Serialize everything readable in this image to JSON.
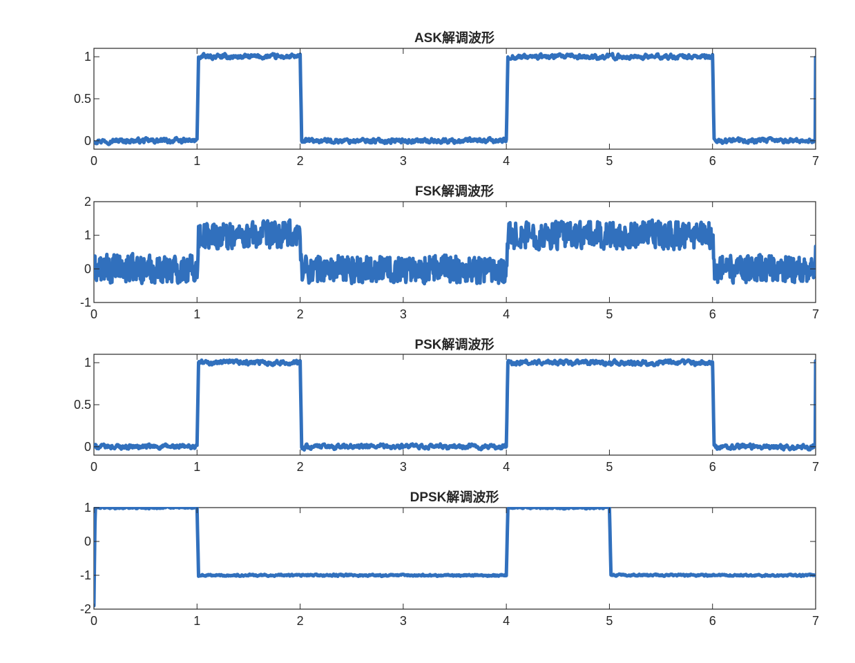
{
  "figure": {
    "background": "#ffffff"
  },
  "chart_data": [
    {
      "type": "line",
      "title": "ASK解调波形",
      "xlabel": "",
      "ylabel": "",
      "xlim": [
        0,
        7
      ],
      "ylim": [
        -0.1,
        1.1
      ],
      "xticks": [
        0,
        1,
        2,
        3,
        4,
        5,
        6,
        7
      ],
      "yticks": [
        0,
        0.5,
        1
      ],
      "ytick_labels": [
        "0",
        "0.5",
        "1"
      ],
      "grid": false,
      "line_color": "#3170bd",
      "symbols": [
        0,
        1,
        0,
        0,
        1,
        1,
        0
      ],
      "levels": [
        0,
        1
      ],
      "noise_amplitude": 0.03,
      "series": [
        {
          "x": [
            0,
            0.98,
            1.0,
            1.98,
            2.0,
            3.98,
            4.0,
            5.98,
            6.0,
            7.0
          ],
          "values": [
            0,
            0,
            1,
            1,
            0,
            0,
            1,
            1,
            0,
            0
          ]
        }
      ]
    },
    {
      "type": "line",
      "title": "FSK解调波形",
      "xlabel": "",
      "ylabel": "",
      "xlim": [
        0,
        7
      ],
      "ylim": [
        -1,
        2
      ],
      "xticks": [
        0,
        1,
        2,
        3,
        4,
        5,
        6,
        7
      ],
      "yticks": [
        -1,
        0,
        1,
        2
      ],
      "ytick_labels": [
        "-1",
        "0",
        "1",
        "2"
      ],
      "grid": false,
      "line_color": "#3170bd",
      "symbols": [
        0,
        1,
        0,
        0,
        1,
        1,
        0
      ],
      "levels": [
        0,
        1
      ],
      "noise_amplitude": 0.38,
      "series": [
        {
          "x": [
            0,
            0.98,
            1.0,
            1.98,
            2.0,
            3.98,
            4.0,
            5.98,
            6.0,
            7.0
          ],
          "values": [
            0,
            0,
            1,
            1,
            0,
            0,
            1,
            1,
            0,
            0
          ]
        }
      ]
    },
    {
      "type": "line",
      "title": "PSK解调波形",
      "xlabel": "",
      "ylabel": "",
      "xlim": [
        0,
        7
      ],
      "ylim": [
        -0.1,
        1.1
      ],
      "xticks": [
        0,
        1,
        2,
        3,
        4,
        5,
        6,
        7
      ],
      "yticks": [
        0,
        0.5,
        1
      ],
      "ytick_labels": [
        "0",
        "0.5",
        "1"
      ],
      "grid": false,
      "line_color": "#3170bd",
      "symbols": [
        0,
        1,
        0,
        0,
        1,
        1,
        0
      ],
      "levels": [
        0,
        1
      ],
      "noise_amplitude": 0.03,
      "series": [
        {
          "x": [
            0,
            0.98,
            1.0,
            1.98,
            2.0,
            3.98,
            4.0,
            5.98,
            6.0,
            7.0
          ],
          "values": [
            0,
            0,
            1,
            1,
            0,
            0,
            1,
            1,
            0,
            0
          ]
        }
      ]
    },
    {
      "type": "line",
      "title": "DPSK解调波形",
      "xlabel": "",
      "ylabel": "",
      "xlim": [
        0,
        7
      ],
      "ylim": [
        -2,
        1
      ],
      "xticks": [
        0,
        1,
        2,
        3,
        4,
        5,
        6,
        7
      ],
      "yticks": [
        -2,
        -1,
        0,
        1
      ],
      "ytick_labels": [
        "-2",
        "-1",
        "0",
        "1"
      ],
      "grid": false,
      "line_color": "#3170bd",
      "symbols": [
        1,
        0,
        0,
        0,
        1,
        0,
        0
      ],
      "levels": [
        -1,
        1
      ],
      "noise_amplitude": 0.03,
      "series": [
        {
          "x": [
            0,
            0.02,
            0.98,
            1.0,
            3.98,
            4.0,
            4.98,
            5.0,
            7.0
          ],
          "values": [
            -1.9,
            1,
            1,
            -1,
            -1,
            1,
            1,
            -1,
            -1
          ]
        }
      ]
    }
  ]
}
